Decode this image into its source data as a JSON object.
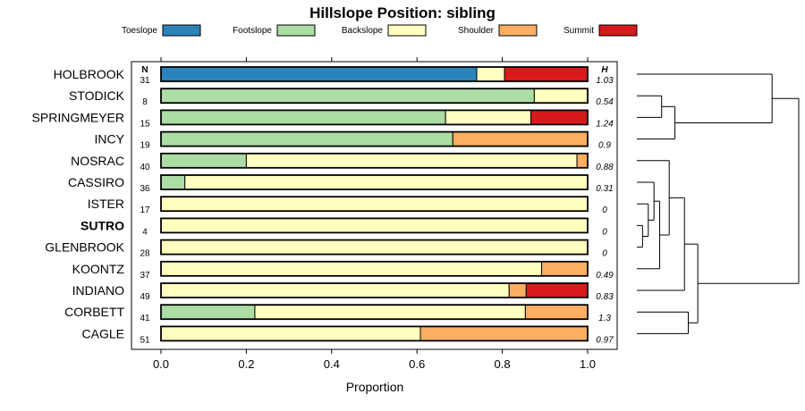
{
  "chart_data": {
    "type": "bar",
    "orientation": "horizontal",
    "stacked": true,
    "title": "Hillslope Position: sibling",
    "xlabel": "Proportion",
    "ylabel": "",
    "xlim": [
      0,
      1
    ],
    "x_ticks": [
      "0.0",
      "0.2",
      "0.4",
      "0.6",
      "0.8",
      "1.0"
    ],
    "n_header": "N",
    "h_header": "H",
    "highlight": "SUTRO",
    "legend": [
      {
        "name": "Toeslope",
        "color": "#2b83ba"
      },
      {
        "name": "Footslope",
        "color": "#abdda4"
      },
      {
        "name": "Backslope",
        "color": "#ffffbf"
      },
      {
        "name": "Shoulder",
        "color": "#fdae61"
      },
      {
        "name": "Summit",
        "color": "#d7191c"
      }
    ],
    "categories": [
      "HOLBROOK",
      "STODICK",
      "SPRINGMEYER",
      "INCY",
      "NOSRAC",
      "CASSIRO",
      "ISTER",
      "SUTRO",
      "GLENBROOK",
      "KOONTZ",
      "INDIANO",
      "CORBETT",
      "CAGLE"
    ],
    "n": [
      "31",
      "8",
      "15",
      "19",
      "40",
      "36",
      "17",
      "4",
      "28",
      "37",
      "49",
      "41",
      "51"
    ],
    "h": [
      "1.03",
      "0.54",
      "1.24",
      "0.9",
      "0.88",
      "0.31",
      "0",
      "0",
      "0",
      "0.49",
      "0.83",
      "1.3",
      "0.97"
    ],
    "series": [
      {
        "name": "Toeslope",
        "values": [
          0.74,
          0,
          0,
          0,
          0,
          0,
          0,
          0,
          0,
          0,
          0,
          0,
          0
        ]
      },
      {
        "name": "Footslope",
        "values": [
          0,
          0.875,
          0.667,
          0.684,
          0.2,
          0.056,
          0,
          0,
          0,
          0,
          0,
          0.22,
          0
        ]
      },
      {
        "name": "Backslope",
        "values": [
          0.065,
          0.125,
          0.2,
          0,
          0.775,
          0.944,
          1,
          1,
          1,
          0.892,
          0.816,
          0.634,
          0.608
        ]
      },
      {
        "name": "Shoulder",
        "values": [
          0,
          0,
          0,
          0.316,
          0.025,
          0,
          0,
          0,
          0,
          0.108,
          0.04,
          0.146,
          0.392
        ]
      },
      {
        "name": "Summit",
        "values": [
          0.195,
          0,
          0.133,
          0,
          0,
          0,
          0,
          0,
          0,
          0,
          0.144,
          0,
          0
        ]
      }
    ],
    "dendrogram": {
      "leaf_order": [
        "HOLBROOK",
        "STODICK",
        "SPRINGMEYER",
        "INCY",
        "NOSRAC",
        "CASSIRO",
        "ISTER",
        "SUTRO",
        "GLENBROOK",
        "KOONTZ",
        "INDIANO",
        "CORBETT",
        "CAGLE"
      ],
      "merges": [
        {
          "a": "SUTRO",
          "b": "GLENBROOK",
          "height": 0.03
        },
        {
          "a": "ISTER",
          "b": "m0",
          "height": 0.06
        },
        {
          "a": "CASSIRO",
          "b": "m1",
          "height": 0.09
        },
        {
          "a": "STODICK",
          "b": "SPRINGMEYER",
          "height": 0.13
        },
        {
          "a": "m3",
          "b": "INCY",
          "height": 0.2
        },
        {
          "a": "m2",
          "b": "KOONTZ",
          "height": 0.12
        },
        {
          "a": "NOSRAC",
          "b": "m5",
          "height": 0.17
        },
        {
          "a": "m6",
          "b": "INDIANO",
          "height": 0.25
        },
        {
          "a": "CORBETT",
          "b": "CAGLE",
          "height": 0.27
        },
        {
          "a": "m7",
          "b": "m8",
          "height": 0.32
        },
        {
          "a": "m4",
          "b": "HOLBROOK",
          "height": 0.71
        },
        {
          "a": "m10",
          "b": "m9",
          "height": 0.85
        }
      ]
    }
  }
}
